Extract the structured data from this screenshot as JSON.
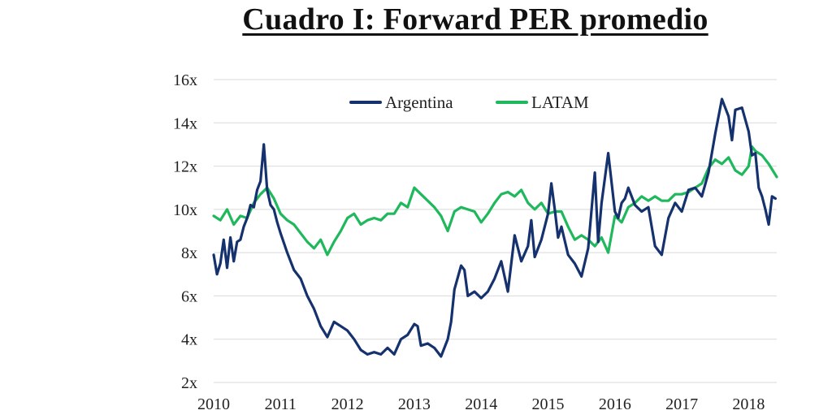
{
  "chart_data": {
    "type": "line",
    "title": "Cuadro I: Forward PER promedio",
    "xlabel": "",
    "ylabel": "",
    "x_ticks": [
      "2010",
      "2011",
      "2012",
      "2013",
      "2014",
      "2015",
      "2016",
      "2017",
      "2018"
    ],
    "y_ticks": [
      "2x",
      "4x",
      "6x",
      "8x",
      "10x",
      "12x",
      "14x",
      "16x"
    ],
    "xlim": [
      2010.0,
      2018.42
    ],
    "ylim": [
      2,
      16
    ],
    "grid": "horizontal",
    "legend": "top-center",
    "series": [
      {
        "name": "Argentina",
        "color": "#15326e",
        "x": [
          2010.0,
          2010.05,
          2010.1,
          2010.15,
          2010.2,
          2010.25,
          2010.3,
          2010.35,
          2010.4,
          2010.45,
          2010.5,
          2010.55,
          2010.6,
          2010.65,
          2010.7,
          2010.75,
          2010.8,
          2010.85,
          2010.9,
          2010.95,
          2011.0,
          2011.1,
          2011.2,
          2011.3,
          2011.4,
          2011.5,
          2011.6,
          2011.7,
          2011.8,
          2011.9,
          2012.0,
          2012.1,
          2012.2,
          2012.3,
          2012.4,
          2012.5,
          2012.6,
          2012.7,
          2012.8,
          2012.9,
          2013.0,
          2013.05,
          2013.1,
          2013.2,
          2013.3,
          2013.4,
          2013.5,
          2013.55,
          2013.6,
          2013.7,
          2013.75,
          2013.8,
          2013.9,
          2014.0,
          2014.1,
          2014.2,
          2014.3,
          2014.4,
          2014.5,
          2014.6,
          2014.7,
          2014.75,
          2014.8,
          2014.9,
          2015.0,
          2015.05,
          2015.1,
          2015.15,
          2015.2,
          2015.3,
          2015.4,
          2015.5,
          2015.6,
          2015.7,
          2015.75,
          2015.8,
          2015.9,
          2016.0,
          2016.05,
          2016.1,
          2016.15,
          2016.2,
          2016.3,
          2016.4,
          2016.5,
          2016.6,
          2016.7,
          2016.8,
          2016.9,
          2017.0,
          2017.1,
          2017.2,
          2017.3,
          2017.4,
          2017.5,
          2017.6,
          2017.7,
          2017.75,
          2017.8,
          2017.9,
          2018.0,
          2018.05,
          2018.1,
          2018.15,
          2018.2,
          2018.25,
          2018.3,
          2018.35,
          2018.4
        ],
        "values": [
          7.9,
          7.0,
          7.5,
          8.6,
          7.3,
          8.7,
          7.6,
          8.5,
          8.6,
          9.2,
          9.6,
          10.2,
          10.1,
          10.9,
          11.3,
          13.0,
          10.9,
          10.2,
          10.0,
          9.4,
          8.9,
          8.0,
          7.2,
          6.8,
          6.0,
          5.4,
          4.6,
          4.1,
          4.8,
          4.6,
          4.4,
          4.0,
          3.5,
          3.3,
          3.4,
          3.3,
          3.6,
          3.3,
          4.0,
          4.2,
          4.7,
          4.6,
          3.7,
          3.8,
          3.6,
          3.2,
          4.0,
          4.8,
          6.3,
          7.4,
          7.2,
          6.0,
          6.2,
          5.9,
          6.2,
          6.8,
          7.6,
          6.2,
          8.8,
          7.6,
          8.3,
          9.5,
          7.8,
          8.6,
          9.8,
          11.2,
          10.0,
          8.7,
          9.2,
          7.9,
          7.5,
          6.9,
          8.2,
          11.7,
          8.5,
          10.3,
          12.6,
          9.9,
          9.6,
          10.3,
          10.5,
          11.0,
          10.2,
          9.9,
          10.1,
          8.3,
          7.9,
          9.6,
          10.3,
          9.9,
          10.9,
          11.0,
          10.6,
          11.7,
          13.5,
          15.1,
          14.3,
          13.2,
          14.6,
          14.7,
          13.6,
          12.5,
          12.6,
          11.0,
          10.6,
          10.0,
          9.3,
          10.6,
          10.5
        ]
      },
      {
        "name": "LATAM",
        "color": "#1fb85c",
        "x": [
          2010.0,
          2010.1,
          2010.2,
          2010.3,
          2010.4,
          2010.5,
          2010.6,
          2010.7,
          2010.8,
          2010.9,
          2011.0,
          2011.1,
          2011.2,
          2011.3,
          2011.4,
          2011.5,
          2011.6,
          2011.7,
          2011.8,
          2011.9,
          2012.0,
          2012.1,
          2012.2,
          2012.3,
          2012.4,
          2012.5,
          2012.6,
          2012.7,
          2012.8,
          2012.9,
          2013.0,
          2013.1,
          2013.2,
          2013.3,
          2013.4,
          2013.5,
          2013.6,
          2013.7,
          2013.8,
          2013.9,
          2014.0,
          2014.1,
          2014.2,
          2014.3,
          2014.4,
          2014.5,
          2014.6,
          2014.7,
          2014.8,
          2014.9,
          2015.0,
          2015.1,
          2015.2,
          2015.3,
          2015.4,
          2015.5,
          2015.6,
          2015.7,
          2015.8,
          2015.9,
          2016.0,
          2016.1,
          2016.2,
          2016.3,
          2016.4,
          2016.5,
          2016.6,
          2016.7,
          2016.8,
          2016.9,
          2017.0,
          2017.1,
          2017.2,
          2017.3,
          2017.4,
          2017.5,
          2017.6,
          2017.7,
          2017.8,
          2017.9,
          2018.0,
          2018.05,
          2018.1,
          2018.2,
          2018.3,
          2018.42
        ],
        "values": [
          9.7,
          9.5,
          10.0,
          9.3,
          9.7,
          9.6,
          10.3,
          10.7,
          11.0,
          10.5,
          9.8,
          9.5,
          9.3,
          8.9,
          8.5,
          8.2,
          8.6,
          7.9,
          8.5,
          9.0,
          9.6,
          9.8,
          9.3,
          9.5,
          9.6,
          9.5,
          9.8,
          9.8,
          10.3,
          10.1,
          11.0,
          10.7,
          10.4,
          10.1,
          9.7,
          9.0,
          9.9,
          10.1,
          10.0,
          9.9,
          9.4,
          9.8,
          10.3,
          10.7,
          10.8,
          10.6,
          10.9,
          10.3,
          10.0,
          10.3,
          9.8,
          9.9,
          9.9,
          9.2,
          8.6,
          8.8,
          8.6,
          8.3,
          8.7,
          8.0,
          9.7,
          9.4,
          10.1,
          10.3,
          10.6,
          10.4,
          10.6,
          10.4,
          10.4,
          10.7,
          10.7,
          10.8,
          11.0,
          11.2,
          11.9,
          12.3,
          12.1,
          12.4,
          11.8,
          11.6,
          12.0,
          12.9,
          12.7,
          12.5,
          12.1,
          11.5
        ]
      }
    ]
  }
}
